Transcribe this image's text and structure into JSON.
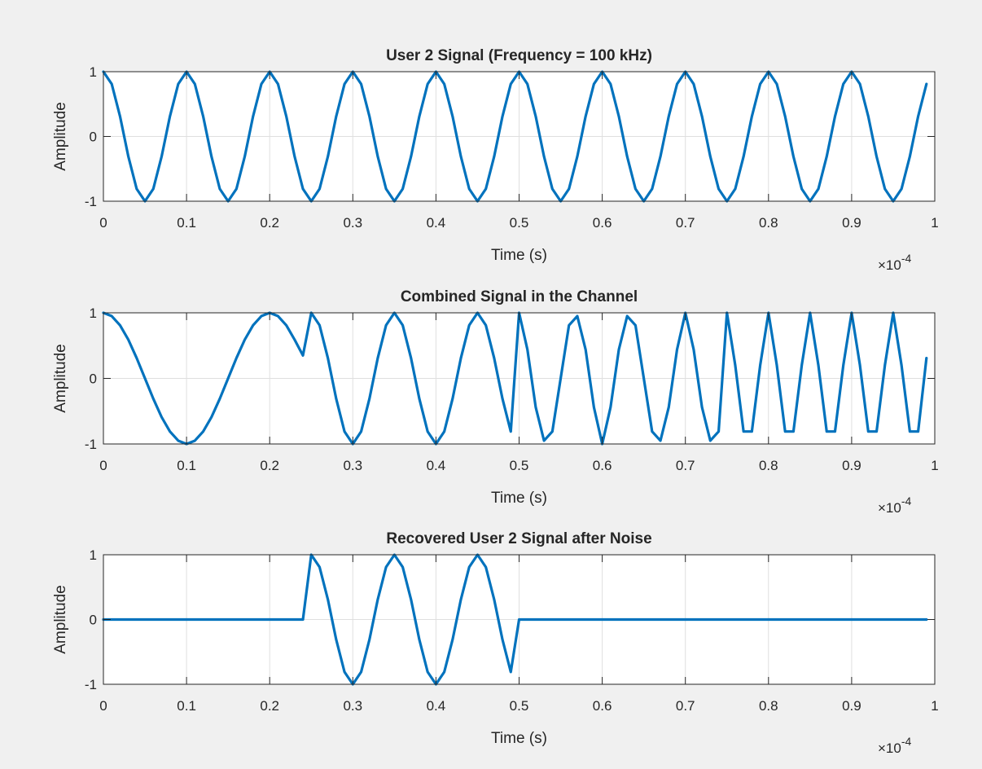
{
  "figure": {
    "background": "#f0f0f0",
    "axes_background": "#ffffff",
    "line_color": "#0072bd"
  },
  "chart_data": [
    {
      "type": "line",
      "title": "User 2 Signal (Frequency = 100 kHz)",
      "xlabel": "Time (s)",
      "ylabel": "Amplitude",
      "x_exponent_label": "×10",
      "x_exponent_power": "-4",
      "xlim": [
        0,
        1
      ],
      "ylim": [
        -1,
        1
      ],
      "x_scale_factor": 0.0001,
      "grid": true,
      "xticks": [
        "0",
        "0.1",
        "0.2",
        "0.3",
        "0.4",
        "0.5",
        "0.6",
        "0.7",
        "0.8",
        "0.9",
        "1"
      ],
      "yticks": [
        "-1",
        "0",
        "1"
      ],
      "series": [
        {
          "x": [
            0,
            0.01,
            0.02,
            0.03,
            0.04,
            0.05,
            0.06,
            0.07,
            0.08,
            0.09,
            0.1,
            0.11,
            0.12,
            0.13,
            0.14,
            0.15,
            0.16,
            0.17,
            0.18,
            0.19,
            0.2,
            0.21,
            0.22,
            0.23,
            0.24,
            0.25,
            0.26,
            0.27,
            0.28,
            0.29,
            0.3,
            0.31,
            0.32,
            0.33,
            0.34,
            0.35,
            0.36,
            0.37,
            0.38,
            0.39,
            0.4,
            0.41,
            0.42,
            0.43,
            0.44,
            0.45,
            0.46,
            0.47,
            0.48,
            0.49,
            0.5,
            0.51,
            0.52,
            0.53,
            0.54,
            0.55,
            0.56,
            0.57,
            0.58,
            0.59,
            0.6,
            0.61,
            0.62,
            0.63,
            0.64,
            0.65,
            0.66,
            0.67,
            0.68,
            0.69,
            0.7,
            0.71,
            0.72,
            0.73,
            0.74,
            0.75,
            0.76,
            0.77,
            0.78,
            0.79,
            0.8,
            0.81,
            0.82,
            0.83,
            0.84,
            0.85,
            0.86,
            0.87,
            0.88,
            0.89,
            0.9,
            0.91,
            0.92,
            0.93,
            0.94,
            0.95,
            0.96,
            0.97,
            0.98,
            0.99
          ],
          "y": [
            1,
            0.81,
            0.31,
            -0.31,
            -0.81,
            -1,
            -0.81,
            -0.31,
            0.31,
            0.81,
            1,
            0.81,
            0.31,
            -0.31,
            -0.81,
            -1,
            -0.81,
            -0.31,
            0.31,
            0.81,
            1,
            0.81,
            0.31,
            -0.31,
            -0.81,
            -1,
            -0.81,
            -0.31,
            0.31,
            0.81,
            1,
            0.81,
            0.31,
            -0.31,
            -0.81,
            -1,
            -0.81,
            -0.31,
            0.31,
            0.81,
            1,
            0.81,
            0.31,
            -0.31,
            -0.81,
            -1,
            -0.81,
            -0.31,
            0.31,
            0.81,
            1,
            0.81,
            0.31,
            -0.31,
            -0.81,
            -1,
            -0.81,
            -0.31,
            0.31,
            0.81,
            1,
            0.81,
            0.31,
            -0.31,
            -0.81,
            -1,
            -0.81,
            -0.31,
            0.31,
            0.81,
            1,
            0.81,
            0.31,
            -0.31,
            -0.81,
            -1,
            -0.81,
            -0.31,
            0.31,
            0.81,
            1,
            0.81,
            0.31,
            -0.31,
            -0.81,
            -1,
            -0.81,
            -0.31,
            0.31,
            0.81,
            1,
            0.81,
            0.31,
            -0.31,
            -0.81,
            -1,
            -0.81,
            -0.31,
            0.31,
            0.81
          ]
        }
      ]
    },
    {
      "type": "line",
      "title": "Combined Signal in the Channel",
      "xlabel": "Time (s)",
      "ylabel": "Amplitude",
      "x_exponent_label": "×10",
      "x_exponent_power": "-4",
      "xlim": [
        0,
        1
      ],
      "ylim": [
        -1,
        1
      ],
      "x_scale_factor": 0.0001,
      "grid": true,
      "xticks": [
        "0",
        "0.1",
        "0.2",
        "0.3",
        "0.4",
        "0.5",
        "0.6",
        "0.7",
        "0.8",
        "0.9",
        "1"
      ],
      "yticks": [
        "-1",
        "0",
        "1"
      ],
      "series": [
        {
          "x": [
            0,
            0.01,
            0.02,
            0.03,
            0.04,
            0.05,
            0.06,
            0.07,
            0.08,
            0.09,
            0.1,
            0.11,
            0.12,
            0.13,
            0.14,
            0.15,
            0.16,
            0.17,
            0.18,
            0.19,
            0.2,
            0.21,
            0.22,
            0.23,
            0.24,
            0.25,
            0.26,
            0.27,
            0.28,
            0.29,
            0.3,
            0.31,
            0.32,
            0.33,
            0.34,
            0.35,
            0.36,
            0.37,
            0.38,
            0.39,
            0.4,
            0.41,
            0.42,
            0.43,
            0.44,
            0.45,
            0.46,
            0.47,
            0.48,
            0.49,
            0.5,
            0.51,
            0.52,
            0.53,
            0.54,
            0.55,
            0.56,
            0.57,
            0.58,
            0.59,
            0.6,
            0.61,
            0.62,
            0.63,
            0.64,
            0.65,
            0.66,
            0.67,
            0.68,
            0.69,
            0.7,
            0.71,
            0.72,
            0.73,
            0.74,
            0.75,
            0.76,
            0.77,
            0.78,
            0.79,
            0.8,
            0.81,
            0.82,
            0.83,
            0.84,
            0.85,
            0.86,
            0.87,
            0.88,
            0.89,
            0.9,
            0.91,
            0.92,
            0.93,
            0.94,
            0.95,
            0.96,
            0.97,
            0.98,
            0.99
          ],
          "y": [
            1,
            0.95,
            0.81,
            0.59,
            0.31,
            0,
            -0.31,
            -0.59,
            -0.81,
            -0.95,
            -1,
            -0.95,
            -0.81,
            -0.59,
            -0.31,
            0,
            0.31,
            0.59,
            0.81,
            0.95,
            1,
            0.95,
            0.81,
            0.59,
            0.35,
            1,
            0.81,
            0.31,
            -0.31,
            -0.81,
            -1,
            -0.81,
            -0.31,
            0.31,
            0.81,
            1,
            0.81,
            0.31,
            -0.31,
            -0.81,
            -1,
            -0.81,
            -0.31,
            0.31,
            0.81,
            1,
            0.81,
            0.31,
            -0.31,
            -0.81,
            1,
            0.44,
            -0.44,
            -0.95,
            -0.81,
            0,
            0.81,
            0.95,
            0.44,
            -0.44,
            -1,
            -0.44,
            0.44,
            0.95,
            0.81,
            0,
            -0.81,
            -0.95,
            -0.44,
            0.44,
            1,
            0.44,
            -0.44,
            -0.95,
            -0.81,
            1,
            0.2,
            -0.81,
            -0.81,
            0.2,
            1,
            0.2,
            -0.81,
            -0.81,
            0.2,
            1,
            0.2,
            -0.81,
            -0.81,
            0.2,
            1,
            0.2,
            -0.81,
            -0.81,
            0.2,
            1,
            0.2,
            -0.81,
            -0.81,
            0.31
          ]
        }
      ]
    },
    {
      "type": "line",
      "title": "Recovered User 2 Signal after Noise",
      "xlabel": "Time (s)",
      "ylabel": "Amplitude",
      "x_exponent_label": "×10",
      "x_exponent_power": "-4",
      "xlim": [
        0,
        1
      ],
      "ylim": [
        -1,
        1
      ],
      "x_scale_factor": 0.0001,
      "grid": true,
      "xticks": [
        "0",
        "0.1",
        "0.2",
        "0.3",
        "0.4",
        "0.5",
        "0.6",
        "0.7",
        "0.8",
        "0.9",
        "1"
      ],
      "yticks": [
        "-1",
        "0",
        "1"
      ],
      "series": [
        {
          "x": [
            0,
            0.01,
            0.02,
            0.03,
            0.04,
            0.05,
            0.06,
            0.07,
            0.08,
            0.09,
            0.1,
            0.11,
            0.12,
            0.13,
            0.14,
            0.15,
            0.16,
            0.17,
            0.18,
            0.19,
            0.2,
            0.21,
            0.22,
            0.23,
            0.24,
            0.25,
            0.26,
            0.27,
            0.28,
            0.29,
            0.3,
            0.31,
            0.32,
            0.33,
            0.34,
            0.35,
            0.36,
            0.37,
            0.38,
            0.39,
            0.4,
            0.41,
            0.42,
            0.43,
            0.44,
            0.45,
            0.46,
            0.47,
            0.48,
            0.49,
            0.5,
            0.51,
            0.52,
            0.53,
            0.54,
            0.55,
            0.56,
            0.57,
            0.58,
            0.59,
            0.6,
            0.61,
            0.62,
            0.63,
            0.64,
            0.65,
            0.66,
            0.67,
            0.68,
            0.69,
            0.7,
            0.71,
            0.72,
            0.73,
            0.74,
            0.75,
            0.76,
            0.77,
            0.78,
            0.79,
            0.8,
            0.81,
            0.82,
            0.83,
            0.84,
            0.85,
            0.86,
            0.87,
            0.88,
            0.89,
            0.9,
            0.91,
            0.92,
            0.93,
            0.94,
            0.95,
            0.96,
            0.97,
            0.98,
            0.99
          ],
          "y": [
            0,
            0,
            0,
            0,
            0,
            0,
            0,
            0,
            0,
            0,
            0,
            0,
            0,
            0,
            0,
            0,
            0,
            0,
            0,
            0,
            0,
            0,
            0,
            0,
            0,
            1,
            0.81,
            0.31,
            -0.31,
            -0.81,
            -1,
            -0.81,
            -0.31,
            0.31,
            0.81,
            1,
            0.81,
            0.31,
            -0.31,
            -0.81,
            -1,
            -0.81,
            -0.31,
            0.31,
            0.81,
            1,
            0.81,
            0.31,
            -0.31,
            -0.81,
            0,
            0,
            0,
            0,
            0,
            0,
            0,
            0,
            0,
            0,
            0,
            0,
            0,
            0,
            0,
            0,
            0,
            0,
            0,
            0,
            0,
            0,
            0,
            0,
            0,
            0,
            0,
            0,
            0,
            0,
            0,
            0,
            0,
            0,
            0,
            0,
            0,
            0,
            0,
            0,
            0,
            0,
            0,
            0,
            0,
            0,
            0,
            0,
            0,
            0
          ]
        }
      ]
    }
  ]
}
